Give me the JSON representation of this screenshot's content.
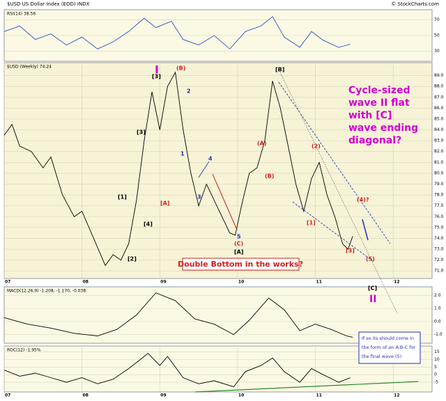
{
  "header": {
    "title": "$USD US Dollar Index (EOD) INDX",
    "source": "© StockCharts.com"
  },
  "chart_data": [
    {
      "type": "line",
      "title": "RSI(14) 38.56",
      "color": "#3050c0",
      "x": [
        2007.0,
        2007.2,
        2007.4,
        2007.6,
        2007.8,
        2008.0,
        2008.2,
        2008.4,
        2008.6,
        2008.8,
        2008.95,
        2009.15,
        2009.3,
        2009.5,
        2009.7,
        2009.9,
        2010.1,
        2010.3,
        2010.45,
        2010.6,
        2010.8,
        2010.95,
        2011.1,
        2011.3,
        2011.45
      ],
      "values": [
        55,
        62,
        45,
        52,
        38,
        48,
        33,
        42,
        55,
        72,
        60,
        68,
        45,
        38,
        50,
        33,
        55,
        62,
        74,
        48,
        35,
        55,
        44,
        35,
        39
      ],
      "xlim": [
        2007,
        2012.5
      ],
      "ylim": [
        20,
        80
      ],
      "yticks": [
        30,
        50,
        70
      ],
      "grid": true
    },
    {
      "type": "line",
      "title": "$USD (Weekly) 74.24",
      "color": "#000000",
      "x": [
        2007.0,
        2007.1,
        2007.2,
        2007.35,
        2007.5,
        2007.6,
        2007.75,
        2007.9,
        2008.0,
        2008.15,
        2008.3,
        2008.4,
        2008.5,
        2008.6,
        2008.7,
        2008.8,
        2008.9,
        2009.0,
        2009.1,
        2009.2,
        2009.3,
        2009.4,
        2009.5,
        2009.6,
        2009.7,
        2009.8,
        2009.9,
        2009.97,
        2010.05,
        2010.15,
        2010.25,
        2010.35,
        2010.45,
        2010.55,
        2010.65,
        2010.75,
        2010.85,
        2010.95,
        2011.05,
        2011.15,
        2011.25,
        2011.35,
        2011.42,
        2011.48
      ],
      "values": [
        83.5,
        84.5,
        82.5,
        82,
        80.5,
        81.5,
        78,
        76,
        76.5,
        74,
        71.5,
        72.5,
        72,
        73.5,
        77.5,
        83,
        87.5,
        84,
        88,
        89.3,
        84,
        80,
        77,
        79,
        77.5,
        76,
        74.5,
        74.3,
        77,
        80,
        80.5,
        83,
        88.5,
        86,
        82.5,
        79,
        76.5,
        79.5,
        81,
        78,
        76,
        73.5,
        73,
        74.2
      ],
      "xlim": [
        2007,
        2012.5
      ],
      "ylim": [
        70.5,
        90
      ],
      "yticks": [
        {
          "value": 71,
          "label": "71.0"
        },
        {
          "value": 72,
          "label": "72.0"
        },
        {
          "value": 73,
          "label": "73.0"
        },
        {
          "value": 74,
          "label": "74.0"
        },
        {
          "value": 75,
          "label": "75.0"
        },
        {
          "value": 76,
          "label": "76.0"
        },
        {
          "value": 77,
          "label": "77.0"
        },
        {
          "value": 78,
          "label": "78.0"
        },
        {
          "value": 79,
          "label": "79.0"
        },
        {
          "value": 80,
          "label": "80.0"
        },
        {
          "value": 81,
          "label": "81.0"
        },
        {
          "value": 82,
          "label": "82.0"
        },
        {
          "value": 83,
          "label": "83.0"
        },
        {
          "value": 84,
          "label": "84.0"
        },
        {
          "value": 85,
          "label": "85.0"
        },
        {
          "value": 86,
          "label": "86.0"
        },
        {
          "value": 87,
          "label": "87.0"
        },
        {
          "value": 88,
          "label": "88.0"
        },
        {
          "value": 89,
          "label": "89.0"
        }
      ],
      "xticks": [
        {
          "value": 2007,
          "label": "07"
        },
        {
          "value": 2008,
          "label": "08"
        },
        {
          "value": 2009,
          "label": "09"
        },
        {
          "value": 2010,
          "label": "10"
        },
        {
          "value": 2011,
          "label": "11"
        },
        {
          "value": 2012,
          "label": "12"
        }
      ],
      "grid": true
    },
    {
      "type": "line",
      "title": "MACD(12,26,9) -1.208, -1.170, -0.038",
      "color": "#000000",
      "x": [
        2007.0,
        2007.3,
        2007.6,
        2007.9,
        2008.2,
        2008.45,
        2008.7,
        2008.95,
        2009.2,
        2009.45,
        2009.7,
        2009.95,
        2010.15,
        2010.4,
        2010.6,
        2010.8,
        2011.0,
        2011.2,
        2011.4,
        2011.48
      ],
      "values": [
        0.3,
        -0.2,
        -0.5,
        -0.9,
        -1.1,
        -0.6,
        0.5,
        2.2,
        1.6,
        0.2,
        -0.2,
        -1.0,
        0.1,
        1.8,
        0.9,
        -0.7,
        -0.2,
        -0.6,
        -1.1,
        -1.2
      ],
      "xlim": [
        2007,
        2012.5
      ],
      "ylim": [
        -1.5,
        2.5
      ],
      "yticks": [
        {
          "value": -1,
          "label": "-1.0"
        },
        {
          "value": 0,
          "label": "0.0"
        },
        {
          "value": 1,
          "label": "1.0"
        },
        {
          "value": 2,
          "label": "2.0"
        }
      ],
      "grid": true
    },
    {
      "type": "line",
      "title": "ROC(12) -1.95%",
      "color": "#000000",
      "x": [
        2007.0,
        2007.2,
        2007.4,
        2007.6,
        2007.8,
        2008.0,
        2008.2,
        2008.4,
        2008.6,
        2008.75,
        2008.85,
        2009.0,
        2009.1,
        2009.3,
        2009.5,
        2009.7,
        2009.95,
        2010.1,
        2010.3,
        2010.45,
        2010.6,
        2010.8,
        2010.95,
        2011.1,
        2011.3,
        2011.45
      ],
      "values": [
        3,
        -1,
        1,
        -2,
        -5,
        -2,
        -6,
        -3,
        4,
        10,
        14,
        6,
        12,
        -2,
        -6,
        -4,
        -8,
        2,
        6,
        11,
        2,
        -5,
        4,
        0,
        -5,
        -2
      ],
      "xlim": [
        2007,
        2012.5
      ],
      "ylim": [
        -10,
        17.5
      ],
      "yticks": [
        -5,
        0,
        5,
        10,
        15
      ],
      "xticks": [
        {
          "value": 2007,
          "label": "07"
        },
        {
          "value": 2008,
          "label": "08"
        },
        {
          "value": 2009,
          "label": "09"
        },
        {
          "value": 2010,
          "label": "10"
        },
        {
          "value": 2011,
          "label": "11"
        },
        {
          "value": 2012,
          "label": "12"
        }
      ],
      "grid": true
    }
  ],
  "annotations": [
    "I",
    "[3]",
    "(B)",
    "2",
    "1",
    "[3]",
    "[1]",
    "[4]",
    "[A]",
    "[2]",
    "4",
    "3",
    "5",
    "(C)",
    "[A]",
    "[B]",
    "(A)",
    "(B)",
    "(2)",
    "[1]",
    "[3]",
    "(4)?",
    "(5)",
    "[C]",
    "II",
    [
      "Cycle-sized",
      "wave II flat",
      "with [C]",
      "wave ending",
      "diagonal?"
    ],
    "Double Bottom in the works?",
    [
      "If so its should come in",
      "the form of an A-B-C for",
      "the final wave (5)"
    ]
  ]
}
